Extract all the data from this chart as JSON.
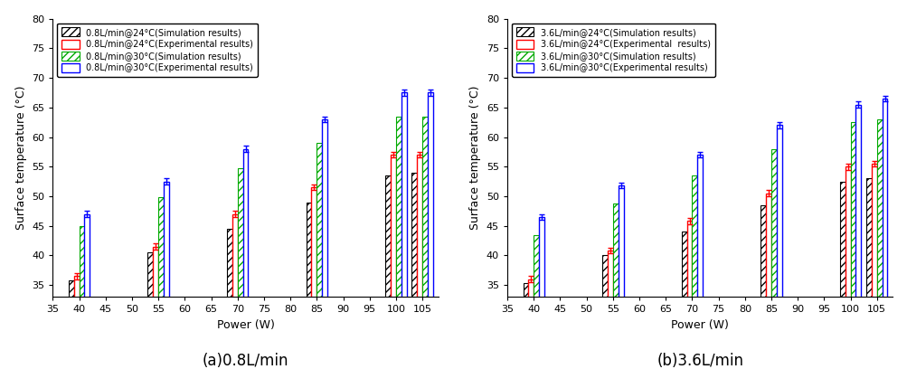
{
  "powers_a": [
    40,
    55,
    70,
    85,
    100,
    105
  ],
  "powers_b": [
    40,
    55,
    70,
    85,
    100,
    105
  ],
  "chart_a": {
    "title": "(a)0.8L/min",
    "legend_labels": [
      "0.8L/min@24°C(Simulation results)",
      "0.8L/min@24°C(Experimental results)",
      "0.8L/min@30°C(Simulation results)",
      "0.8L/min@30°C(Experimental results)"
    ],
    "sim_24": [
      35.8,
      40.5,
      44.5,
      49.0,
      53.5,
      54.0
    ],
    "exp_24": [
      36.5,
      41.5,
      47.0,
      51.5,
      57.0,
      57.0
    ],
    "sim_30": [
      45.0,
      49.8,
      54.8,
      59.0,
      63.5,
      63.5
    ],
    "exp_30": [
      47.0,
      52.5,
      58.0,
      63.0,
      67.5,
      67.5
    ],
    "exp_24_err": [
      0.5,
      0.5,
      0.5,
      0.5,
      0.5,
      0.5
    ],
    "exp_30_err": [
      0.5,
      0.5,
      0.5,
      0.5,
      0.5,
      0.5
    ],
    "ylim": [
      33,
      80
    ],
    "yticks": [
      35,
      40,
      45,
      50,
      55,
      60,
      65,
      70,
      75,
      80
    ]
  },
  "chart_b": {
    "title": "(b)3.6L/min",
    "legend_labels": [
      "3.6L/min@24°C(Simulation results)",
      "3.6L/min@24°C(Experimental  results)",
      "3.6L/min@30°C(Simulation results)",
      "3.6L/min@30°C(Experimental results)"
    ],
    "sim_24": [
      35.3,
      40.0,
      44.0,
      48.5,
      52.5,
      53.0
    ],
    "exp_24": [
      36.0,
      40.8,
      45.8,
      50.5,
      55.0,
      55.5
    ],
    "sim_30": [
      43.5,
      48.8,
      53.5,
      58.0,
      62.5,
      63.0
    ],
    "exp_30": [
      46.5,
      51.8,
      57.0,
      62.0,
      65.5,
      66.5
    ],
    "exp_24_err": [
      0.5,
      0.5,
      0.5,
      0.5,
      0.5,
      0.5
    ],
    "exp_30_err": [
      0.5,
      0.5,
      0.5,
      0.5,
      0.5,
      0.5
    ],
    "ylim": [
      33,
      80
    ],
    "yticks": [
      35,
      40,
      45,
      50,
      55,
      60,
      65,
      70,
      75,
      80
    ]
  },
  "colors": {
    "sim_24_edge": "#000000",
    "exp_24_edge": "#ff0000",
    "sim_30_edge": "#00aa00",
    "exp_30_edge": "#0000ff"
  },
  "xlabel": "Power (W)",
  "ylabel": "Surface temperature (°C)",
  "x_major_ticks": [
    35,
    40,
    45,
    50,
    55,
    60,
    65,
    70,
    75,
    80,
    85,
    90,
    95,
    100,
    105
  ]
}
